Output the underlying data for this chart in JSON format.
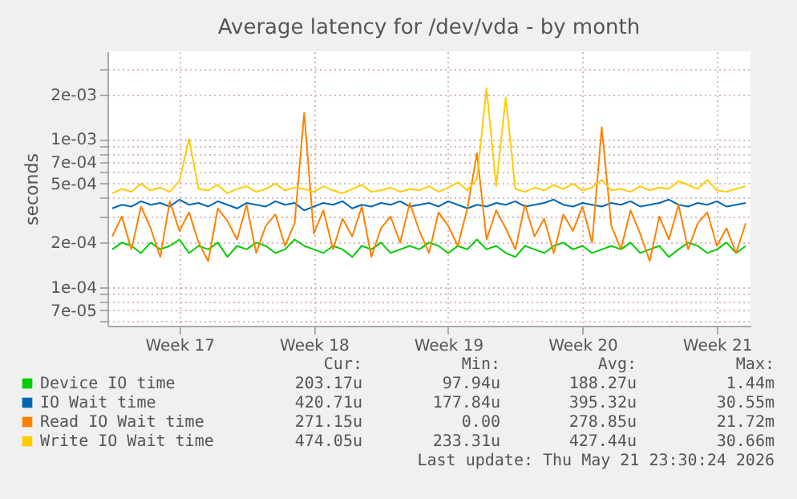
{
  "chart_data": {
    "type": "line",
    "title": "Average latency for /dev/vda - by month",
    "ylabel": "seconds",
    "log": true,
    "grid": true,
    "legend": "bottom",
    "ylim": [
      5.5e-05,
      0.0039
    ],
    "yticks": [
      {
        "value": 6e-05,
        "label": null
      },
      {
        "value": 7e-05,
        "label": "7e-05"
      },
      {
        "value": 8e-05,
        "label": null
      },
      {
        "value": 9e-05,
        "label": null
      },
      {
        "value": 0.0001,
        "label": "1e-04"
      },
      {
        "value": 0.0002,
        "label": "2e-04"
      },
      {
        "value": 0.0003,
        "label": null
      },
      {
        "value": 0.0004,
        "label": null
      },
      {
        "value": 0.0005,
        "label": "5e-04"
      },
      {
        "value": 0.0006,
        "label": null
      },
      {
        "value": 0.0007,
        "label": "7e-04"
      },
      {
        "value": 0.0008,
        "label": null
      },
      {
        "value": 0.0009,
        "label": null
      },
      {
        "value": 0.001,
        "label": "1e-03"
      },
      {
        "value": 0.002,
        "label": "2e-03"
      },
      {
        "value": 0.003,
        "label": null
      }
    ],
    "categories": [
      null,
      null,
      null,
      null,
      null,
      null,
      null,
      "Week 17",
      null,
      null,
      null,
      null,
      null,
      null,
      null,
      null,
      null,
      null,
      null,
      null,
      null,
      "Week 18",
      null,
      null,
      null,
      null,
      null,
      null,
      null,
      null,
      null,
      null,
      null,
      null,
      null,
      "Week 19",
      null,
      null,
      null,
      null,
      null,
      null,
      null,
      null,
      null,
      null,
      null,
      null,
      null,
      "Week 20",
      null,
      null,
      null,
      null,
      null,
      null,
      null,
      null,
      null,
      null,
      null,
      null,
      null,
      "Week 21",
      null,
      null,
      null
    ],
    "series": [
      {
        "name": "Device IO time",
        "color": "#00cc00",
        "values": [
          0.00018,
          0.0002,
          0.00019,
          0.00017,
          0.0002,
          0.00018,
          0.00019,
          0.00021,
          0.00017,
          0.00019,
          0.00018,
          0.0002,
          0.00016,
          0.00019,
          0.00018,
          0.0002,
          0.00019,
          0.00017,
          0.00018,
          0.00021,
          0.00019,
          0.00018,
          0.00017,
          0.00019,
          0.00018,
          0.00016,
          0.00019,
          0.00018,
          0.0002,
          0.00017,
          0.00018,
          0.00019,
          0.00018,
          0.0002,
          0.00019,
          0.00017,
          0.00019,
          0.00018,
          0.00021,
          0.00018,
          0.00019,
          0.00017,
          0.00016,
          0.00019,
          0.00018,
          0.00017,
          0.00019,
          0.0002,
          0.00018,
          0.00019,
          0.00017,
          0.00018,
          0.00019,
          0.00018,
          0.0002,
          0.00017,
          0.00018,
          0.00019,
          0.00016,
          0.00018,
          0.0002,
          0.00019,
          0.00017,
          0.00018,
          0.0002,
          0.00017,
          0.00019
        ]
      },
      {
        "name": "IO Wait time",
        "color": "#0066b3",
        "values": [
          0.00034,
          0.00036,
          0.00035,
          0.00038,
          0.00036,
          0.00037,
          0.00035,
          0.00039,
          0.00036,
          0.00037,
          0.00035,
          0.00038,
          0.00036,
          0.00034,
          0.00037,
          0.00036,
          0.00035,
          0.00038,
          0.00036,
          0.00037,
          0.00033,
          0.00035,
          0.00037,
          0.00036,
          0.00038,
          0.00034,
          0.00036,
          0.00035,
          0.00037,
          0.00036,
          0.00038,
          0.00035,
          0.00036,
          0.00037,
          0.00035,
          0.00038,
          0.00036,
          0.00034,
          0.00036,
          0.00035,
          0.00037,
          0.00036,
          0.00038,
          0.00035,
          0.00036,
          0.00037,
          0.00039,
          0.00036,
          0.00035,
          0.00037,
          0.00036,
          0.00035,
          0.00037,
          0.00036,
          0.00038,
          0.00035,
          0.00036,
          0.00037,
          0.00039,
          0.00036,
          0.00035,
          0.00037,
          0.00036,
          0.00038,
          0.00035,
          0.00036,
          0.00037
        ]
      },
      {
        "name": "Read IO Wait time",
        "color": "#ff8000",
        "values": [
          0.00022,
          0.0003,
          0.00018,
          0.00035,
          0.00025,
          0.00016,
          0.00038,
          0.00024,
          0.00032,
          0.0002,
          0.00015,
          0.00034,
          0.00028,
          0.00021,
          0.00036,
          0.00017,
          0.00026,
          0.00031,
          0.00019,
          0.00027,
          0.0015,
          0.00023,
          0.00033,
          0.00018,
          0.00029,
          0.00022,
          0.00035,
          0.00016,
          0.00025,
          0.0003,
          0.0002,
          0.00037,
          0.00024,
          0.00017,
          0.00032,
          0.00026,
          0.00019,
          0.00034,
          0.0008,
          0.00021,
          0.00033,
          0.00025,
          0.00018,
          0.00036,
          0.00022,
          0.00029,
          0.00017,
          0.00031,
          0.00024,
          0.00035,
          0.0002,
          0.0012,
          0.00026,
          0.00018,
          0.00033,
          0.00023,
          0.00015,
          0.0003,
          0.00021,
          0.00036,
          0.00018,
          0.00027,
          0.00032,
          0.00019,
          0.00025,
          0.00017,
          0.00027
        ]
      },
      {
        "name": "Write IO Wait time",
        "color": "#ffcc00",
        "values": [
          0.00043,
          0.00046,
          0.00044,
          0.0005,
          0.00045,
          0.00047,
          0.00044,
          0.00052,
          0.001,
          0.00046,
          0.00045,
          0.00049,
          0.00043,
          0.00046,
          0.00048,
          0.00044,
          0.00046,
          0.0005,
          0.00045,
          0.00047,
          0.00046,
          0.00044,
          0.00048,
          0.00045,
          0.00043,
          0.00046,
          0.00049,
          0.00044,
          0.00045,
          0.00047,
          0.00044,
          0.00046,
          0.00045,
          0.00048,
          0.00044,
          0.00047,
          0.00051,
          0.00045,
          0.00054,
          0.0022,
          0.00048,
          0.0019,
          0.00046,
          0.00044,
          0.00047,
          0.00045,
          0.00049,
          0.00046,
          0.0005,
          0.00045,
          0.00047,
          0.00053,
          0.00045,
          0.00046,
          0.00044,
          0.00048,
          0.00045,
          0.00047,
          0.00046,
          0.00052,
          0.00049,
          0.00046,
          0.00053,
          0.00045,
          0.00044,
          0.00046,
          0.00048
        ]
      }
    ],
    "annotations": [
      "Cur:",
      "Min:",
      "Avg:",
      "Max:",
      "203.17u",
      "97.94u",
      "188.27u",
      "1.44m",
      "420.71u",
      "177.84u",
      "395.32u",
      "30.55m",
      "271.15u",
      "0.00",
      "278.85u",
      "21.72m",
      "474.05u",
      "233.31u",
      "427.44u",
      "30.66m",
      "Last update: Thu May 21 23:30:24 2026"
    ]
  }
}
